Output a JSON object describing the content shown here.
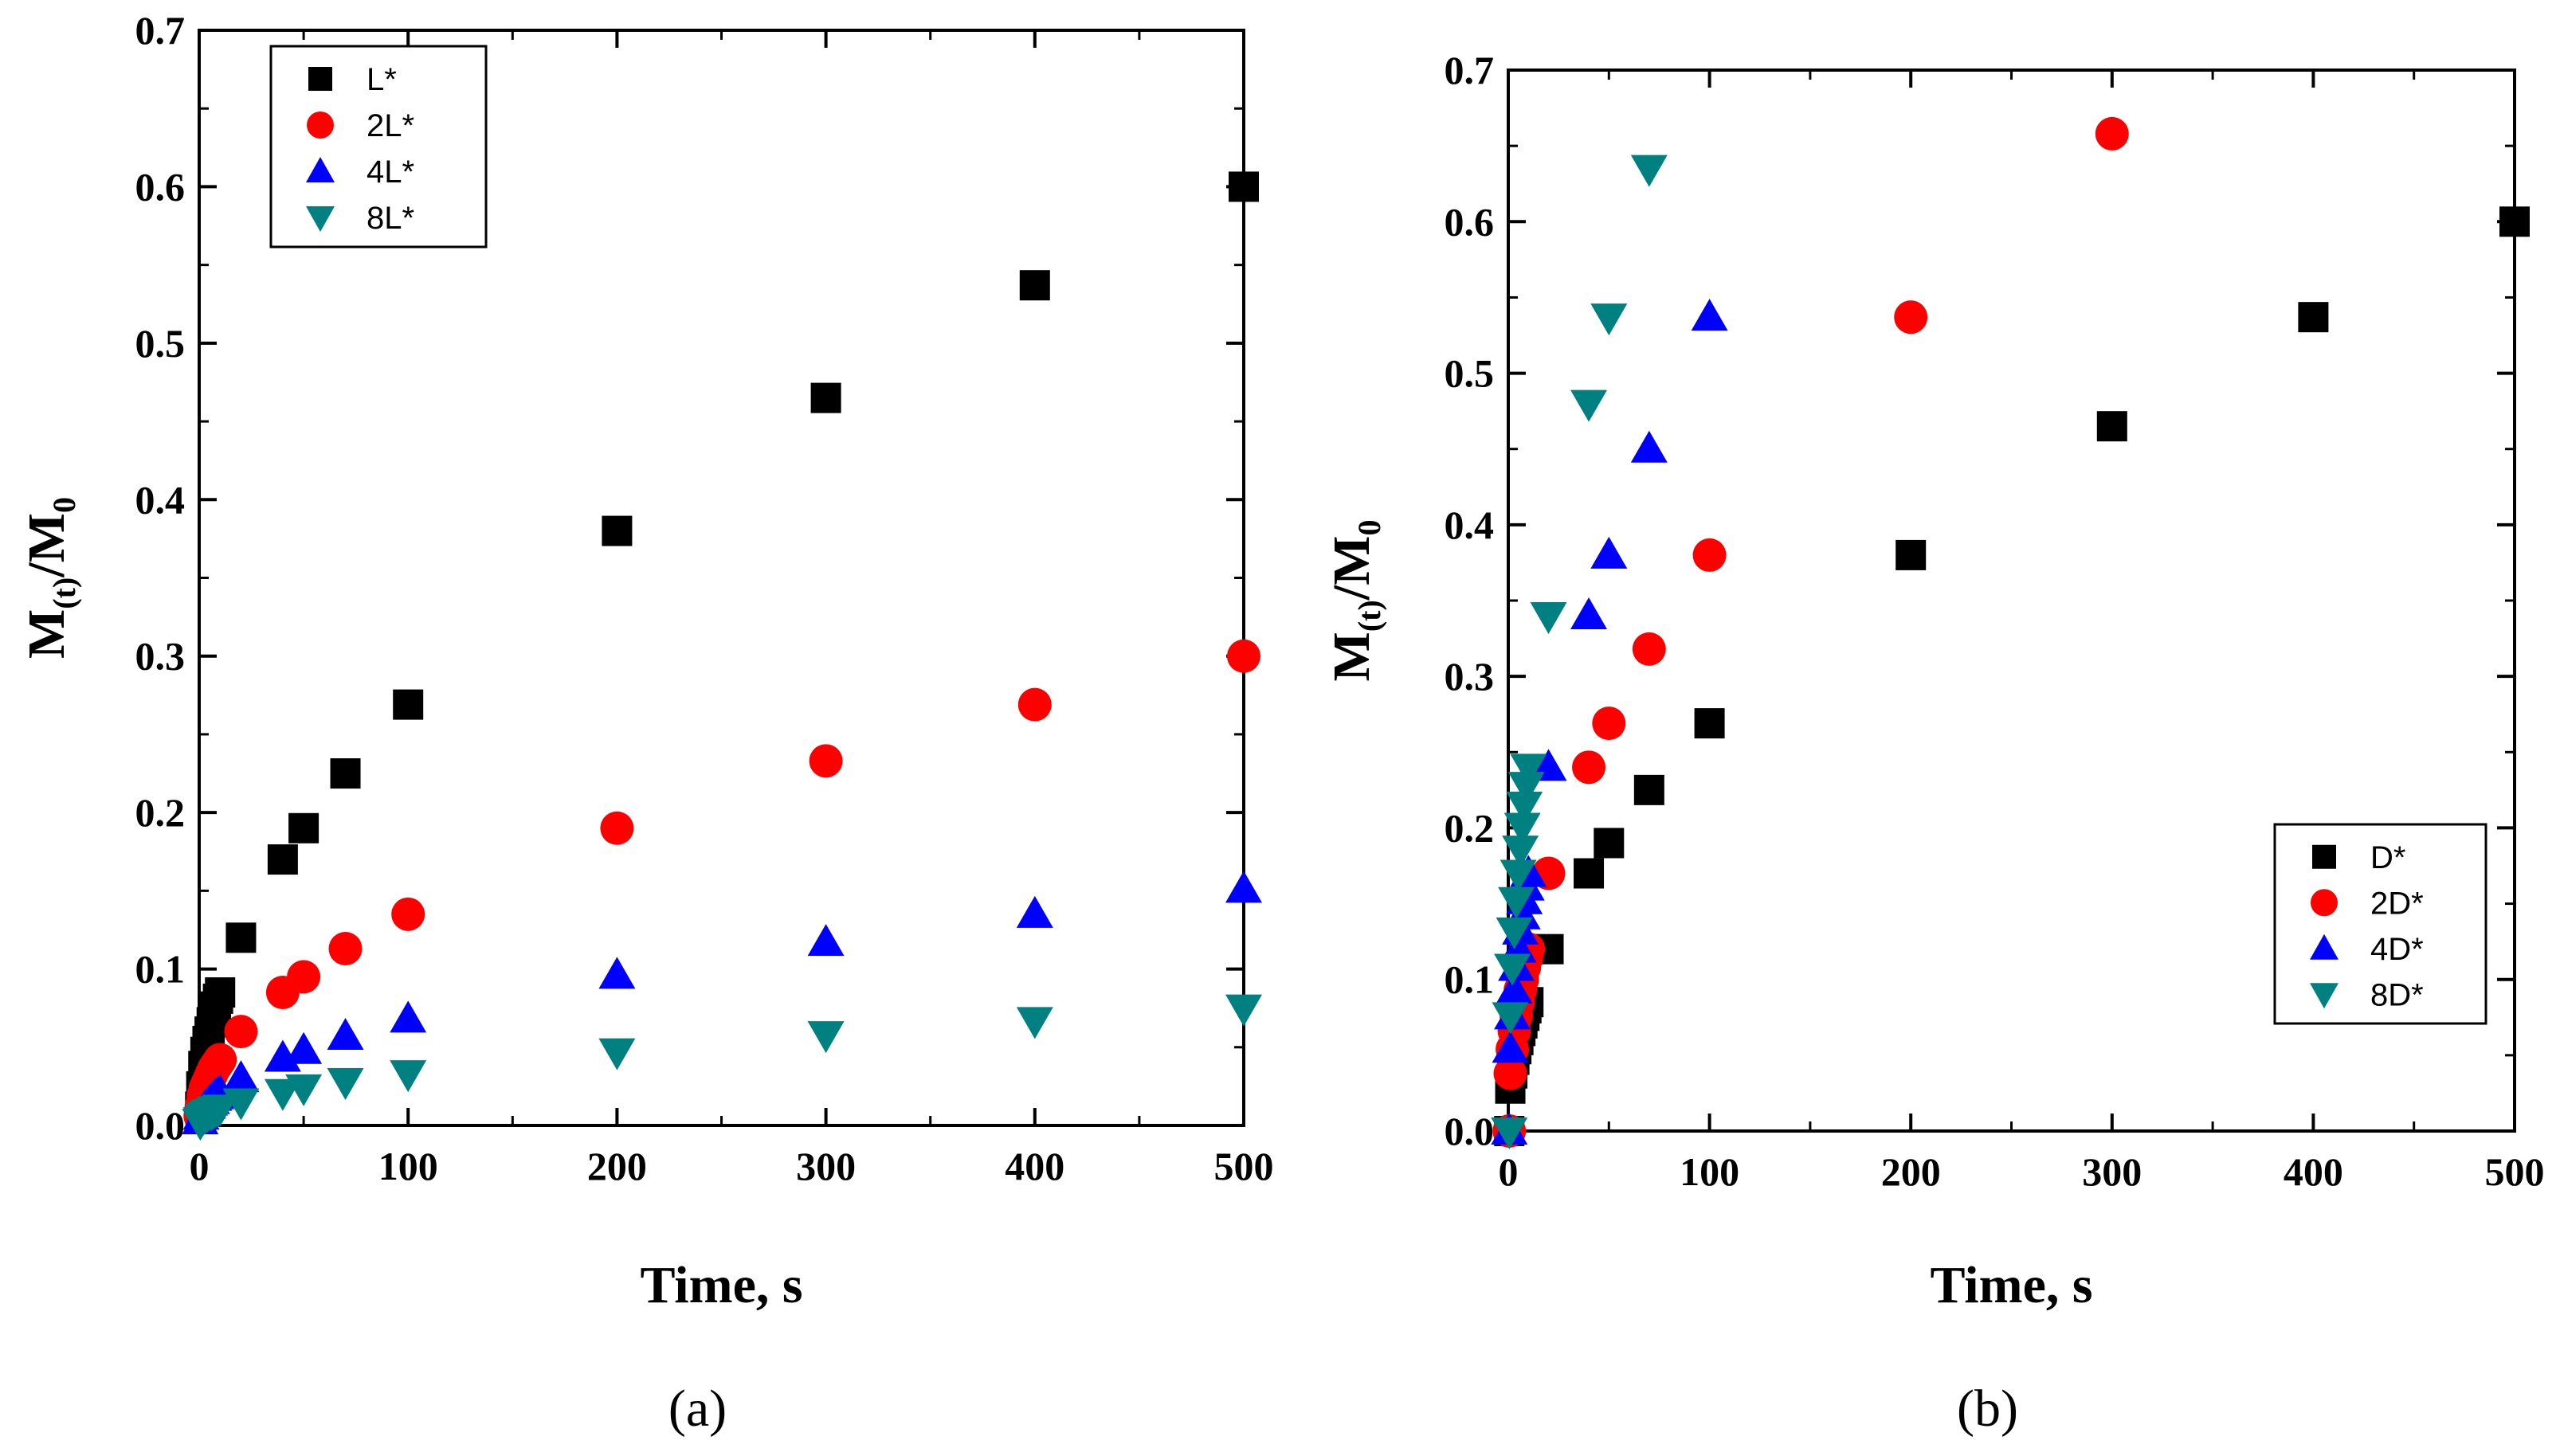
{
  "chart_data": [
    {
      "type": "scatter",
      "panel_label": "(a)",
      "xlabel": "Time, s",
      "ylabel_main": "M",
      "ylabel_sub1": "(t)",
      "ylabel_mid": "/M",
      "ylabel_sub2": "0",
      "xlim": [
        0,
        500
      ],
      "ylim": [
        0,
        0.7
      ],
      "xticks": [
        0,
        100,
        200,
        300,
        400,
        500
      ],
      "xtick_labels": [
        "0",
        "100",
        "200",
        "300",
        "400",
        "500"
      ],
      "yticks": [
        0,
        0.1,
        0.2,
        0.3,
        0.4,
        0.5,
        0.6,
        0.7
      ],
      "ytick_labels": [
        "0.0",
        "0.1",
        "0.2",
        "0.3",
        "0.4",
        "0.5",
        "0.6",
        "0.7"
      ],
      "legend_position": "top-left",
      "series": [
        {
          "name": "L*",
          "marker": "square",
          "color": "#000000",
          "x": [
            0.5,
            1,
            2,
            3,
            4,
            5,
            6,
            7,
            8,
            9,
            10,
            20,
            40,
            50,
            70,
            100,
            200,
            300,
            400,
            500
          ],
          "y": [
            0.012,
            0.025,
            0.038,
            0.047,
            0.054,
            0.06,
            0.066,
            0.071,
            0.076,
            0.081,
            0.085,
            0.12,
            0.17,
            0.19,
            0.225,
            0.269,
            0.38,
            0.465,
            0.537,
            0.6
          ]
        },
        {
          "name": "2L*",
          "marker": "circle",
          "color": "#ff0000",
          "x": [
            0.5,
            1,
            2,
            3,
            4,
            5,
            6,
            7,
            8,
            9,
            10,
            20,
            40,
            50,
            70,
            100,
            200,
            300,
            400,
            500
          ],
          "y": [
            0.006,
            0.012,
            0.019,
            0.024,
            0.027,
            0.03,
            0.033,
            0.036,
            0.038,
            0.04,
            0.042,
            0.06,
            0.085,
            0.095,
            0.113,
            0.135,
            0.19,
            0.233,
            0.269,
            0.3
          ]
        },
        {
          "name": "4L*",
          "marker": "triangle-up",
          "color": "#0000ff",
          "x": [
            0.5,
            1,
            2,
            3,
            4,
            5,
            6,
            7,
            8,
            9,
            10,
            20,
            40,
            50,
            70,
            100,
            200,
            300,
            400,
            500
          ],
          "y": [
            0.003,
            0.006,
            0.009,
            0.012,
            0.013,
            0.015,
            0.016,
            0.018,
            0.019,
            0.02,
            0.021,
            0.03,
            0.043,
            0.048,
            0.057,
            0.068,
            0.096,
            0.117,
            0.135,
            0.151
          ]
        },
        {
          "name": "8L*",
          "marker": "triangle-down",
          "color": "#008080",
          "x": [
            0.5,
            1,
            2,
            3,
            4,
            5,
            6,
            7,
            8,
            9,
            10,
            20,
            40,
            50,
            70,
            100,
            200,
            300,
            400,
            500
          ],
          "y": [
            0.002,
            0.003,
            0.005,
            0.006,
            0.007,
            0.008,
            0.008,
            0.009,
            0.01,
            0.01,
            0.011,
            0.015,
            0.021,
            0.024,
            0.028,
            0.033,
            0.047,
            0.058,
            0.067,
            0.075
          ]
        }
      ]
    },
    {
      "type": "scatter",
      "panel_label": "(b)",
      "xlabel": "Time, s",
      "ylabel_main": "M",
      "ylabel_sub1": "(t)",
      "ylabel_mid": "/M",
      "ylabel_sub2": "0",
      "xlim": [
        0,
        500
      ],
      "ylim": [
        0,
        0.7
      ],
      "xticks": [
        0,
        100,
        200,
        300,
        400,
        500
      ],
      "xtick_labels": [
        "0",
        "100",
        "200",
        "300",
        "400",
        "500"
      ],
      "yticks": [
        0,
        0.1,
        0.2,
        0.3,
        0.4,
        0.5,
        0.6,
        0.7
      ],
      "ytick_labels": [
        "0.0",
        "0.1",
        "0.2",
        "0.3",
        "0.4",
        "0.5",
        "0.6",
        "0.7"
      ],
      "legend_position": "bottom-right",
      "series": [
        {
          "name": "D*",
          "marker": "square",
          "color": "#000000",
          "x": [
            0.5,
            1,
            2,
            3,
            4,
            5,
            6,
            7,
            8,
            9,
            10,
            20,
            40,
            50,
            70,
            100,
            200,
            300,
            400,
            500
          ],
          "y": [
            0.0,
            0.028,
            0.038,
            0.047,
            0.054,
            0.06,
            0.066,
            0.071,
            0.076,
            0.081,
            0.085,
            0.12,
            0.17,
            0.19,
            0.225,
            0.269,
            0.38,
            0.465,
            0.537,
            0.6
          ]
        },
        {
          "name": "2D*",
          "marker": "circle",
          "color": "#ff0000",
          "x": [
            0.5,
            1,
            2,
            3,
            4,
            5,
            6,
            7,
            8,
            9,
            10,
            20,
            40,
            50,
            70,
            100,
            200,
            300
          ],
          "y": [
            0.0,
            0.038,
            0.054,
            0.066,
            0.076,
            0.085,
            0.093,
            0.1,
            0.108,
            0.114,
            0.12,
            0.17,
            0.24,
            0.269,
            0.318,
            0.38,
            0.537,
            0.658
          ]
        },
        {
          "name": "4D*",
          "marker": "triangle-up",
          "color": "#0000ff",
          "x": [
            0.5,
            1,
            2,
            3,
            4,
            5,
            6,
            7,
            8,
            9,
            10,
            20,
            40,
            50,
            70,
            100
          ],
          "y": [
            0.0,
            0.054,
            0.076,
            0.093,
            0.108,
            0.12,
            0.132,
            0.142,
            0.152,
            0.161,
            0.17,
            0.24,
            0.34,
            0.38,
            0.45,
            0.537
          ]
        },
        {
          "name": "8D*",
          "marker": "triangle-down",
          "color": "#008080",
          "x": [
            0.5,
            1,
            2,
            3,
            4,
            5,
            6,
            7,
            8,
            9,
            10,
            20,
            40,
            50,
            70
          ],
          "y": [
            0.0,
            0.076,
            0.108,
            0.132,
            0.152,
            0.17,
            0.186,
            0.201,
            0.215,
            0.228,
            0.24,
            0.34,
            0.48,
            0.537,
            0.635
          ]
        }
      ]
    }
  ]
}
